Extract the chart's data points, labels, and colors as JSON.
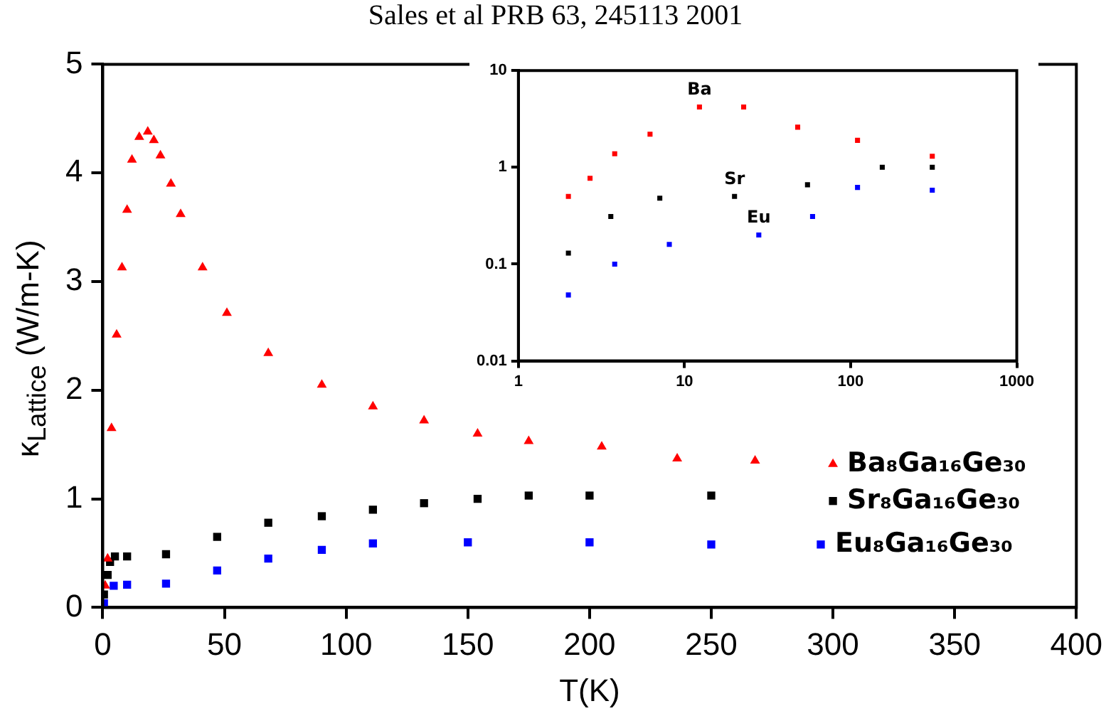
{
  "chart_data": [
    {
      "type": "scatter",
      "title": "Sales et al PRB 63, 245113 2001",
      "xlabel": "T(K)",
      "ylabel": "κ$_{Lattice}$ (W/m-K)",
      "xlim": [
        0,
        400
      ],
      "xticks": [
        0,
        50,
        100,
        150,
        200,
        250,
        300,
        350,
        400
      ],
      "ylim": [
        0,
        5
      ],
      "yticks": [
        0,
        1,
        2,
        3,
        4,
        5
      ],
      "grid": false,
      "legend": false,
      "series": [
        {
          "name": "Ba₈Ga₁₆Ge₃₀",
          "color": "#ff0000",
          "marker": "triangle",
          "x": [
            1,
            2,
            3.6,
            5.7,
            7.9,
            10,
            12,
            15,
            18.5,
            21,
            23.7,
            28,
            32,
            41,
            51,
            68,
            90,
            111,
            132,
            154,
            175,
            205,
            236,
            268,
            300
          ],
          "values": [
            0.2,
            0.45,
            1.65,
            2.51,
            3.13,
            3.66,
            4.12,
            4.33,
            4.38,
            4.3,
            4.16,
            3.9,
            3.62,
            3.13,
            2.71,
            2.34,
            2.05,
            1.85,
            1.72,
            1.6,
            1.53,
            1.48,
            1.37,
            1.35,
            1.32
          ]
        },
        {
          "name": "Sr₈Ga₁₆Ge₃₀",
          "color": "#000000",
          "marker": "square",
          "x": [
            0.5,
            2,
            3,
            5,
            10,
            26,
            47,
            68,
            90,
            111,
            132,
            154,
            175,
            200,
            250,
            300
          ],
          "values": [
            0.12,
            0.3,
            0.42,
            0.47,
            0.47,
            0.49,
            0.65,
            0.78,
            0.84,
            0.9,
            0.96,
            1.0,
            1.03,
            1.03,
            1.03,
            0.98
          ]
        },
        {
          "name": "Eu₈Ga₁₆Ge₃₀",
          "color": "#0000ff",
          "marker": "square",
          "x": [
            0.5,
            4.5,
            10,
            26,
            47,
            68,
            90,
            111,
            150,
            200,
            250,
            295
          ],
          "values": [
            0.04,
            0.2,
            0.21,
            0.22,
            0.34,
            0.45,
            0.53,
            0.59,
            0.6,
            0.6,
            0.58,
            0.58
          ]
        }
      ]
    },
    {
      "type": "scatter",
      "log": "xy",
      "xlim": [
        1,
        1000
      ],
      "xticks": [
        1,
        10,
        100,
        1000
      ],
      "ylim": [
        0.01,
        10
      ],
      "yticks": [
        0.01,
        0.1,
        1,
        10
      ],
      "grid": false,
      "legend": false,
      "marker": "square",
      "series": [
        {
          "name": "Ba",
          "color": "#ff0000",
          "x": [
            2,
            2.7,
            3.8,
            6.2,
            12.3,
            22.7,
            48,
            110,
            310
          ],
          "values": [
            0.5,
            0.77,
            1.38,
            2.2,
            4.2,
            4.2,
            2.6,
            1.9,
            1.3
          ]
        },
        {
          "name": "Sr",
          "color": "#000000",
          "x": [
            2,
            3.6,
            7.1,
            20,
            55,
            155,
            310
          ],
          "values": [
            0.13,
            0.31,
            0.48,
            0.5,
            0.66,
            1.0,
            1.0
          ]
        },
        {
          "name": "Eu",
          "color": "#0000ff",
          "x": [
            2,
            3.8,
            8.1,
            28,
            59,
            110,
            310
          ],
          "values": [
            0.048,
            0.1,
            0.16,
            0.2,
            0.31,
            0.62,
            0.58
          ]
        }
      ]
    }
  ]
}
